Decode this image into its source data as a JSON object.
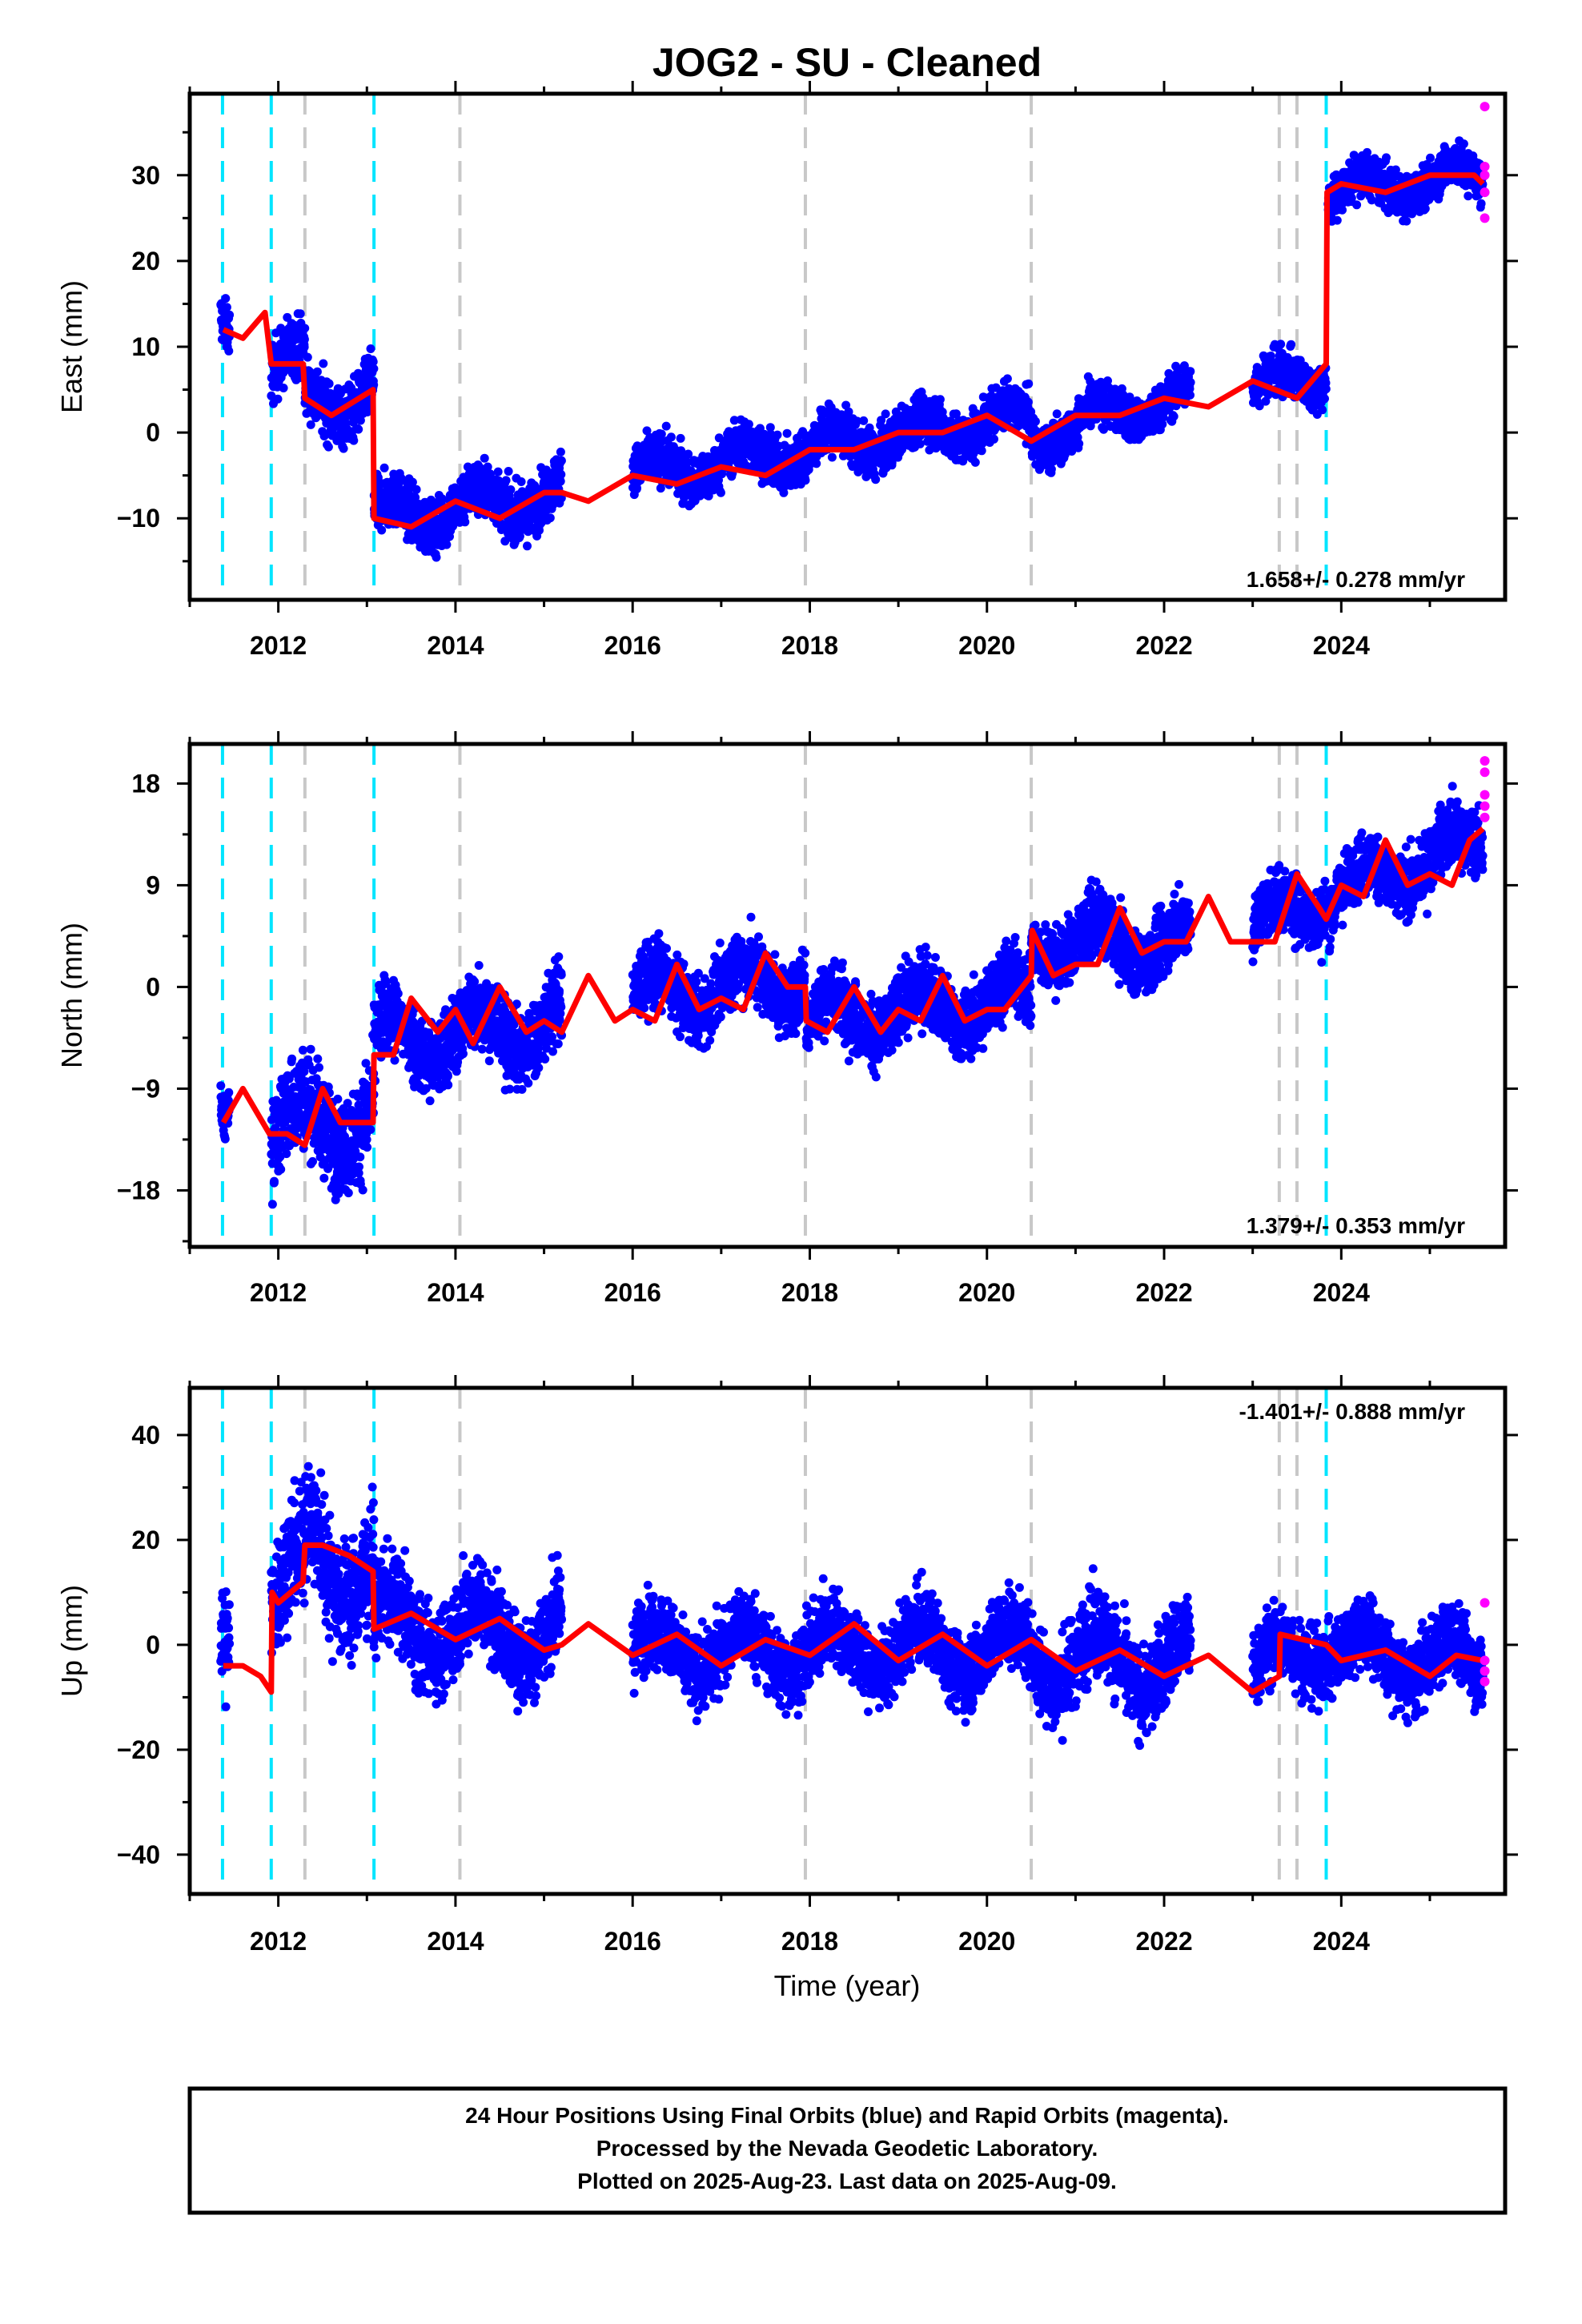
{
  "title": "JOG2  - SU - Cleaned",
  "xlabel": "Time (year)",
  "x_ticks": [
    "2012",
    "2014",
    "2016",
    "2018",
    "2020",
    "2022",
    "2024"
  ],
  "colors": {
    "final_orbits": "#0000ff",
    "rapid_orbits": "#ff00ff",
    "model": "#ff0000",
    "equipment_change": "#00e5ff",
    "event": "#c8c8c8"
  },
  "chart_data": [
    {
      "type": "scatter",
      "ylabel": "East (mm)",
      "xlim": [
        2011.0,
        2025.85
      ],
      "ylim": [
        -19.5,
        39.5
      ],
      "y_ticks": [
        "30",
        "20",
        "10",
        "0",
        "−10"
      ],
      "rate": "1.658+/- 0.278 mm/yr",
      "model_line": {
        "x": [
          2011.38,
          2011.6,
          2011.85,
          2011.92,
          2012.28,
          2012.3,
          2012.6,
          2013.07,
          2013.08,
          2013.5,
          2014.0,
          2014.5,
          2015.0,
          2015.2,
          2015.5,
          2016.0,
          2016.5,
          2017.0,
          2017.5,
          2018.0,
          2018.5,
          2019.0,
          2019.5,
          2020.0,
          2020.5,
          2021.0,
          2021.5,
          2022.0,
          2022.5,
          2023.0,
          2023.5,
          2023.83,
          2023.84,
          2024.0,
          2024.5,
          2025.0,
          2025.5,
          2025.6
        ],
        "y": [
          12,
          11,
          14,
          8,
          8,
          4,
          2,
          5,
          -10,
          -11,
          -8,
          -10,
          -7,
          -7,
          -8,
          -5,
          -6,
          -4,
          -5,
          -2,
          -2,
          0,
          0,
          2,
          -1,
          2,
          2,
          4,
          3,
          6,
          4,
          8,
          28,
          29,
          28,
          30,
          30,
          29
        ]
      },
      "final_orbit_segments": [
        {
          "x": [
            2011.35,
            2011.45
          ],
          "trend": [
            12,
            11
          ],
          "spread": 2
        },
        {
          "x": [
            2011.92,
            2012.3
          ],
          "trend": [
            8,
            8
          ],
          "spread": 2.5
        },
        {
          "x": [
            2012.3,
            2013.08
          ],
          "trend": [
            3,
            5
          ],
          "spread": 2.5
        },
        {
          "x": [
            2013.08,
            2015.2
          ],
          "trend": [
            -10,
            -7
          ],
          "spread": 2.2
        },
        {
          "x": [
            2016.0,
            2020.5
          ],
          "trend": [
            -5,
            2
          ],
          "spread": 2.0
        },
        {
          "x": [
            2020.5,
            2021.3
          ],
          "trend": [
            -1,
            2
          ],
          "spread": 1.8
        },
        {
          "x": [
            2021.3,
            2022.3
          ],
          "trend": [
            2,
            4
          ],
          "spread": 1.8
        },
        {
          "x": [
            2023.0,
            2023.83
          ],
          "trend": [
            5,
            7
          ],
          "spread": 1.8
        },
        {
          "x": [
            2023.85,
            2025.6
          ],
          "trend": [
            28,
            30
          ],
          "spread": 1.8
        }
      ],
      "rapid_orbit_points": {
        "x": [
          2025.62,
          2025.62,
          2025.62,
          2025.62,
          2025.62
        ],
        "y": [
          38,
          31,
          30,
          28,
          25
        ]
      }
    },
    {
      "type": "scatter",
      "ylabel": "North (mm)",
      "xlim": [
        2011.0,
        2025.85
      ],
      "ylim": [
        -23,
        21.5
      ],
      "y_ticks": [
        "18",
        "9",
        "0",
        "−9",
        "−18"
      ],
      "rate": "1.379+/- 0.353 mm/yr",
      "model_line": {
        "x": [
          2011.38,
          2011.6,
          2011.9,
          2012.1,
          2012.3,
          2012.5,
          2012.7,
          2013.07,
          2013.08,
          2013.3,
          2013.5,
          2013.8,
          2014.0,
          2014.2,
          2014.5,
          2014.8,
          2015.0,
          2015.2,
          2015.5,
          2015.8,
          2016.0,
          2016.25,
          2016.5,
          2016.75,
          2017.0,
          2017.25,
          2017.5,
          2017.75,
          2017.95,
          2017.96,
          2018.2,
          2018.5,
          2018.8,
          2019.0,
          2019.25,
          2019.5,
          2019.75,
          2020.0,
          2020.2,
          2020.5,
          2020.51,
          2020.75,
          2021.0,
          2021.25,
          2021.5,
          2021.75,
          2022.0,
          2022.25,
          2022.5,
          2022.75,
          2023.0,
          2023.25,
          2023.5,
          2023.75,
          2023.83,
          2024.0,
          2024.25,
          2024.5,
          2024.75,
          2025.0,
          2025.25,
          2025.45,
          2025.6
        ],
        "y": [
          -12,
          -9,
          -13,
          -13,
          -14,
          -9,
          -12,
          -12,
          -6,
          -6,
          -1,
          -4,
          -2,
          -5,
          0,
          -4,
          -3,
          -4,
          1,
          -3,
          -2,
          -3,
          2,
          -2,
          -1,
          -2,
          3,
          0,
          0,
          -3,
          -4,
          0,
          -4,
          -2,
          -3,
          1,
          -3,
          -2,
          -2,
          1,
          5,
          1,
          2,
          2,
          7,
          3,
          4,
          4,
          8,
          4,
          4,
          4,
          10,
          7,
          6,
          9,
          8,
          13,
          9,
          10,
          9,
          13,
          14
        ]
      },
      "final_orbit_segments": [
        {
          "x": [
            2011.35,
            2011.45
          ],
          "trend": [
            -12,
            -12
          ],
          "spread": 1.5
        },
        {
          "x": [
            2011.92,
            2013.08
          ],
          "trend": [
            -13,
            -11
          ],
          "spread": 3.0
        },
        {
          "x": [
            2013.08,
            2015.2
          ],
          "trend": [
            -5,
            -3
          ],
          "spread": 2.5
        },
        {
          "x": [
            2016.0,
            2017.95
          ],
          "trend": [
            -1,
            1
          ],
          "spread": 2.2
        },
        {
          "x": [
            2017.96,
            2020.5
          ],
          "trend": [
            -3,
            -1
          ],
          "spread": 2.2
        },
        {
          "x": [
            2020.5,
            2022.3
          ],
          "trend": [
            4,
            4
          ],
          "spread": 2.0
        },
        {
          "x": [
            2023.0,
            2023.83
          ],
          "trend": [
            5,
            8
          ],
          "spread": 2.0
        },
        {
          "x": [
            2023.85,
            2025.6
          ],
          "trend": [
            8,
            13
          ],
          "spread": 2.0
        }
      ],
      "rapid_orbit_points": {
        "x": [
          2025.62,
          2025.62,
          2025.62,
          2025.62,
          2025.62
        ],
        "y": [
          20,
          19,
          17,
          16,
          15
        ]
      }
    },
    {
      "type": "scatter",
      "ylabel": "Up (mm)",
      "xlim": [
        2011.0,
        2025.85
      ],
      "ylim": [
        -47.5,
        49
      ],
      "y_ticks": [
        "40",
        "20",
        "0",
        "−20",
        "−40"
      ],
      "rate": "-1.401+/- 0.888 mm/yr",
      "model_line": {
        "x": [
          2011.38,
          2011.6,
          2011.8,
          2011.92,
          2011.93,
          2012.0,
          2012.28,
          2012.3,
          2012.5,
          2012.8,
          2013.07,
          2013.08,
          2013.5,
          2014.0,
          2014.5,
          2015.0,
          2015.2,
          2015.5,
          2016.0,
          2016.5,
          2017.0,
          2017.5,
          2018.0,
          2018.5,
          2019.0,
          2019.5,
          2020.0,
          2020.5,
          2021.0,
          2021.5,
          2022.0,
          2022.5,
          2023.0,
          2023.3,
          2023.31,
          2023.83,
          2024.0,
          2024.5,
          2025.0,
          2025.3,
          2025.6
        ],
        "y": [
          -4,
          -4,
          -6,
          -9,
          10,
          8,
          12,
          19,
          19,
          17,
          14,
          3,
          6,
          1,
          5,
          -1,
          0,
          4,
          -2,
          2,
          -4,
          1,
          -2,
          4,
          -3,
          2,
          -4,
          1,
          -5,
          -1,
          -6,
          -2,
          -9,
          -6,
          2,
          0,
          -3,
          -1,
          -6,
          -2,
          -3
        ]
      },
      "final_orbit_segments": [
        {
          "x": [
            2011.35,
            2011.45
          ],
          "trend": [
            -4,
            -4
          ],
          "spread": 8
        },
        {
          "x": [
            2011.92,
            2012.3
          ],
          "trend": [
            10,
            12
          ],
          "spread": 8
        },
        {
          "x": [
            2012.3,
            2013.08
          ],
          "trend": [
            19,
            14
          ],
          "spread": 8
        },
        {
          "x": [
            2013.08,
            2015.2
          ],
          "trend": [
            4,
            2
          ],
          "spread": 6
        },
        {
          "x": [
            2016.0,
            2020.5
          ],
          "trend": [
            -1,
            -1
          ],
          "spread": 5
        },
        {
          "x": [
            2020.5,
            2022.3
          ],
          "trend": [
            -2,
            -4
          ],
          "spread": 6
        },
        {
          "x": [
            2023.0,
            2023.83
          ],
          "trend": [
            -6,
            1
          ],
          "spread": 5
        },
        {
          "x": [
            2023.85,
            2025.6
          ],
          "trend": [
            -1,
            -4
          ],
          "spread": 5
        }
      ],
      "rapid_orbit_points": {
        "x": [
          2025.62,
          2025.62,
          2025.62,
          2025.62
        ],
        "y": [
          8,
          -3,
          -5,
          -7
        ]
      }
    }
  ],
  "vertical_lines": {
    "equipment_change": [
      2011.37,
      2011.92,
      2013.08,
      2023.83
    ],
    "event": [
      2012.3,
      2014.05,
      2017.95,
      2020.5,
      2023.3,
      2023.5
    ]
  },
  "footer": {
    "line1": "24 Hour Positions Using Final Orbits (blue) and Rapid Orbits (magenta).",
    "line2": "Processed by the Nevada Geodetic Laboratory.",
    "line3": "Plotted on 2025-Aug-23. Last data on 2025-Aug-09."
  }
}
